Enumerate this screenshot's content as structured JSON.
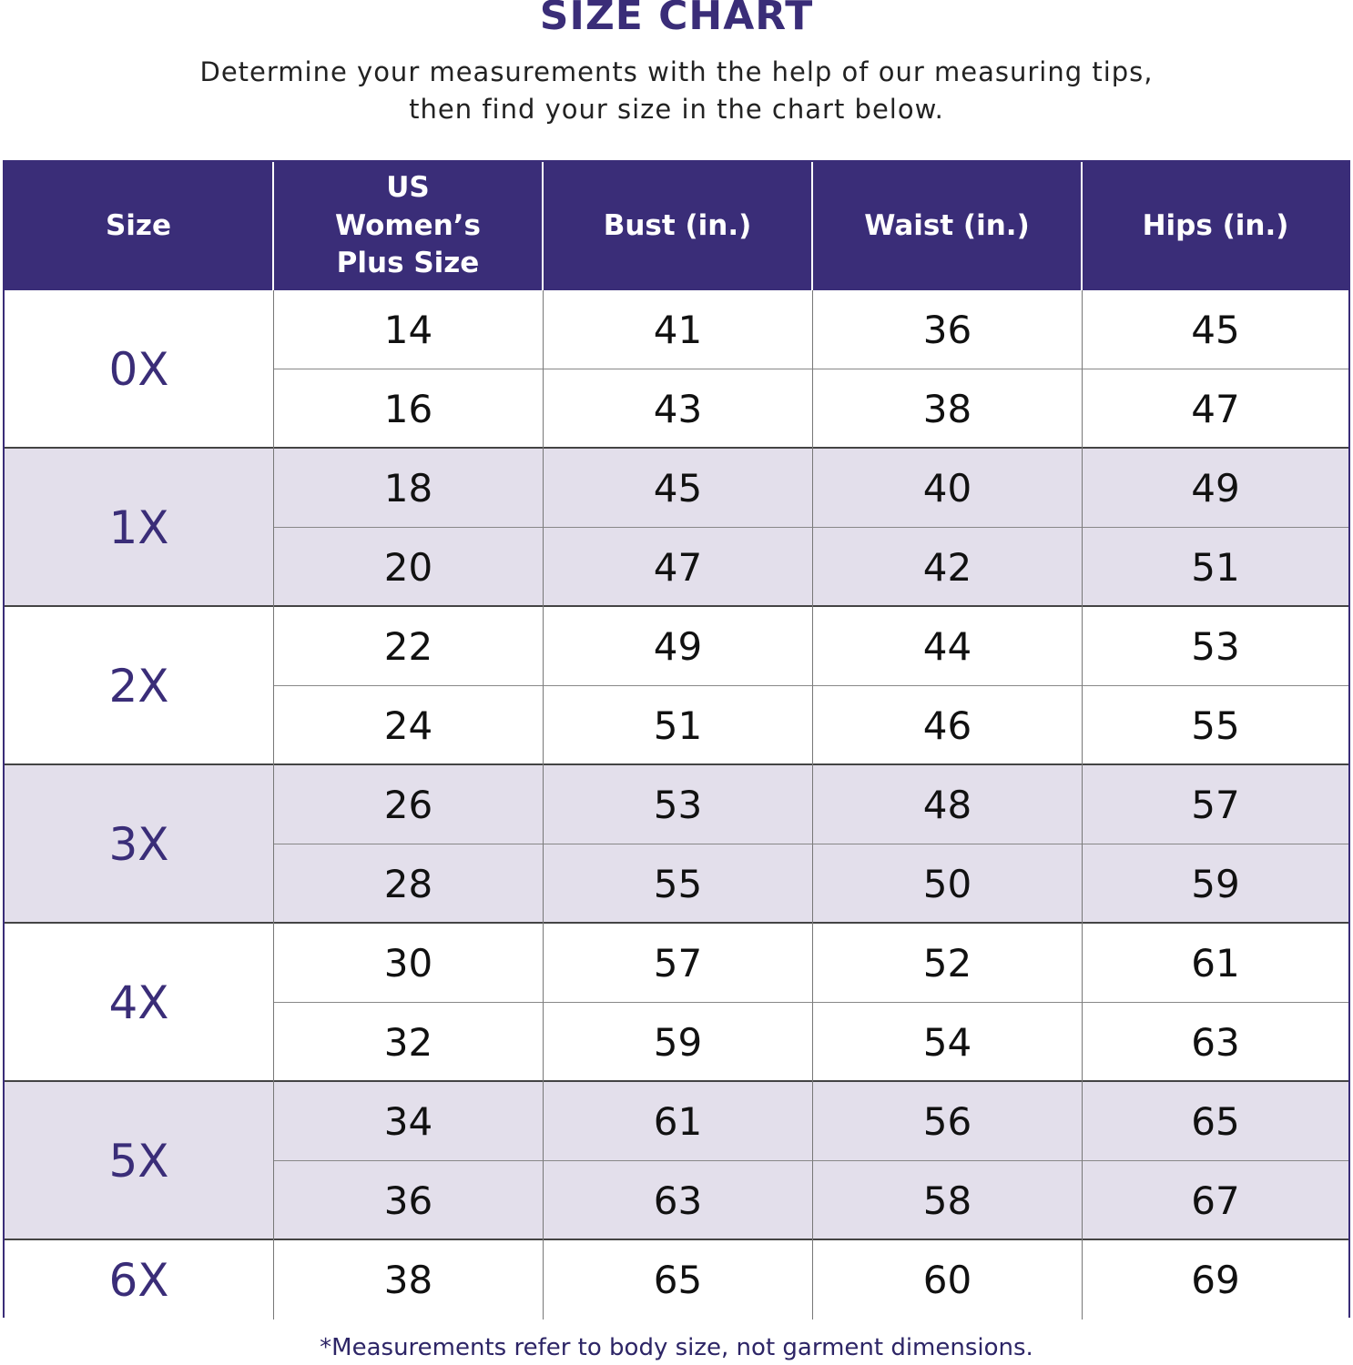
{
  "title": "SIZE CHART",
  "subtitle_lines": [
    "Determine your measurements with the help of our measuring tips,",
    "then find your size in the chart below."
  ],
  "colors": {
    "header_bg": "#3a2d78",
    "shaded_row": "#e3dfeb",
    "size_text": "#3a2d78"
  },
  "table": {
    "headers": [
      "Size",
      "US Women’s Plus Size",
      "Bust (in.)",
      "Waist (in.)",
      "Hips (in.)"
    ],
    "groups": [
      {
        "size": "0X",
        "rows": [
          [
            "14",
            "41",
            "36",
            "45"
          ],
          [
            "16",
            "43",
            "38",
            "47"
          ]
        ]
      },
      {
        "size": "1X",
        "rows": [
          [
            "18",
            "45",
            "40",
            "49"
          ],
          [
            "20",
            "47",
            "42",
            "51"
          ]
        ]
      },
      {
        "size": "2X",
        "rows": [
          [
            "22",
            "49",
            "44",
            "53"
          ],
          [
            "24",
            "51",
            "46",
            "55"
          ]
        ]
      },
      {
        "size": "3X",
        "rows": [
          [
            "26",
            "53",
            "48",
            "57"
          ],
          [
            "28",
            "55",
            "50",
            "59"
          ]
        ]
      },
      {
        "size": "4X",
        "rows": [
          [
            "30",
            "57",
            "52",
            "61"
          ],
          [
            "32",
            "59",
            "54",
            "63"
          ]
        ]
      },
      {
        "size": "5X",
        "rows": [
          [
            "34",
            "61",
            "56",
            "65"
          ],
          [
            "36",
            "63",
            "58",
            "67"
          ]
        ]
      },
      {
        "size": "6X",
        "rows": [
          [
            "38",
            "65",
            "60",
            "69"
          ]
        ]
      }
    ]
  },
  "footer": "*Measurements refer to body size, not garment dimensions."
}
